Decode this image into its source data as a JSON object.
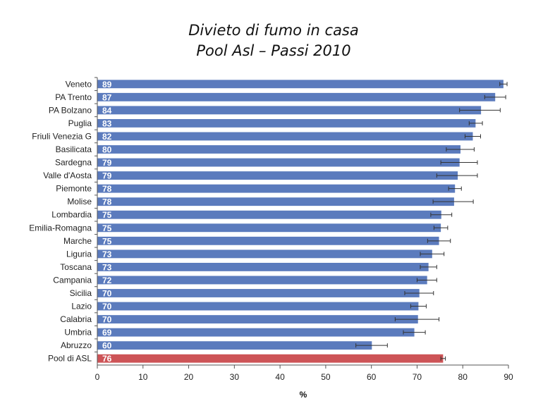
{
  "chart_data": {
    "type": "bar",
    "orientation": "horizontal",
    "title": "Divieto di fumo in casa",
    "subtitle": "Pool Asl – Passi 2010",
    "xlabel": "%",
    "ylabel": "",
    "xlim": [
      0,
      90
    ],
    "x_ticks": [
      "0",
      "10",
      "20",
      "30",
      "40",
      "50",
      "60",
      "70",
      "80",
      "90"
    ],
    "grid": false,
    "colors": {
      "regions": "#5b7bbd",
      "pool": "#cd5457",
      "error_bar": "#333333"
    },
    "categories": [
      "Veneto",
      "PA Trento",
      "PA Bolzano",
      "Puglia",
      "Friuli Venezia G",
      "Basilicata",
      "Sardegna",
      "Valle d'Aosta",
      "Piemonte",
      "Molise",
      "Lombardia",
      "Emilia-Romagna",
      "Marche",
      "Liguria",
      "Toscana",
      "Campania",
      "Sicilia",
      "Lazio",
      "Calabria",
      "Umbria",
      "Abruzzo",
      "Pool di ASL"
    ],
    "values": [
      88.9,
      87.1,
      84.0,
      82.8,
      82.2,
      79.5,
      79.3,
      78.9,
      78.3,
      78.1,
      75.3,
      75.2,
      74.8,
      73.3,
      72.5,
      72.2,
      70.5,
      70.3,
      70.2,
      69.4,
      60.1,
      75.7
    ],
    "data_labels": [
      "89",
      "87",
      "84",
      "83",
      "82",
      "80",
      "79",
      "79",
      "78",
      "78",
      "75",
      "75",
      "75",
      "73",
      "73",
      "72",
      "70",
      "70",
      "70",
      "69",
      "60",
      "76"
    ],
    "ci_low": [
      88.1,
      84.8,
      79.3,
      81.4,
      80.5,
      76.4,
      75.2,
      74.3,
      76.9,
      73.5,
      73.0,
      73.7,
      72.3,
      70.7,
      70.7,
      70.0,
      67.3,
      68.6,
      65.2,
      67.0,
      56.6,
      75.2
    ],
    "ci_high": [
      89.7,
      89.4,
      88.2,
      84.3,
      83.9,
      82.5,
      83.2,
      83.2,
      79.7,
      82.3,
      77.6,
      76.7,
      77.3,
      75.9,
      74.3,
      74.3,
      73.6,
      72.0,
      74.8,
      71.8,
      63.5,
      76.2
    ],
    "highlight_index": 21
  }
}
